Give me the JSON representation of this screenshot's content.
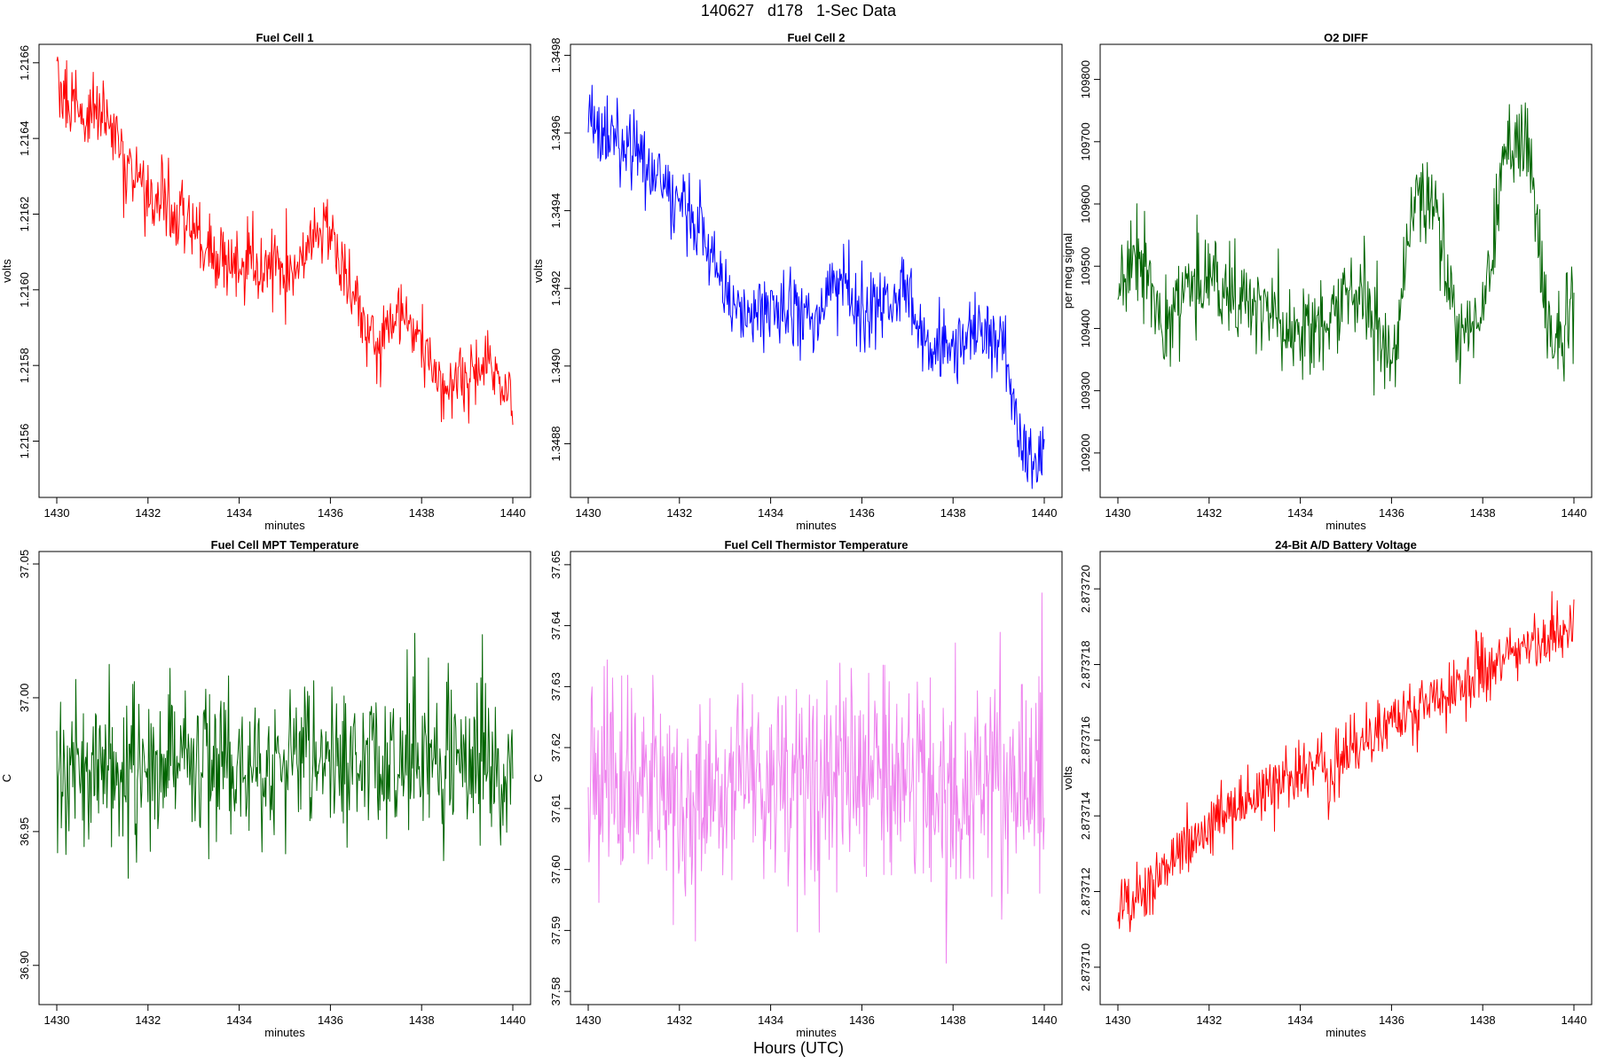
{
  "figure": {
    "title": "140627   d178   1-Sec Data",
    "footer": "Hours (UTC)"
  },
  "chart_data": [
    {
      "type": "line",
      "title": "Fuel Cell 1",
      "xlabel": "minutes",
      "ylabel": "volts",
      "color": "#ff0000",
      "xlim": [
        1430,
        1440
      ],
      "ylim": [
        1.21547,
        1.21663
      ],
      "xticks": [
        1430,
        1432,
        1434,
        1436,
        1438,
        1440
      ],
      "yticks": [
        1.2156,
        1.2158,
        1.216,
        1.2162,
        1.2164,
        1.2166
      ],
      "ytick_labels": [
        "1.2156",
        "1.2158",
        "1.2160",
        "1.2162",
        "1.2164",
        "1.2166"
      ],
      "x": [
        1430,
        1430.5,
        1431,
        1431.5,
        1432,
        1432.5,
        1433,
        1433.5,
        1434,
        1434.5,
        1435,
        1435.5,
        1436,
        1436.5,
        1437,
        1437.5,
        1438,
        1438.5,
        1439,
        1439.5,
        1440
      ],
      "values": [
        1.21656,
        1.21646,
        1.21648,
        1.21632,
        1.21626,
        1.21622,
        1.21617,
        1.21607,
        1.21607,
        1.21607,
        1.21602,
        1.21612,
        1.21615,
        1.21597,
        1.21585,
        1.21592,
        1.21587,
        1.21571,
        1.21578,
        1.21582,
        1.21566
      ],
      "spread": 9e-05
    },
    {
      "type": "line",
      "title": "Fuel Cell 2",
      "xlabel": "minutes",
      "ylabel": "volts",
      "color": "#0000ff",
      "xlim": [
        1430,
        1440
      ],
      "ylim": [
        1.34868,
        1.34981
      ],
      "xticks": [
        1430,
        1432,
        1434,
        1436,
        1438,
        1440
      ],
      "yticks": [
        1.3488,
        1.349,
        1.3492,
        1.3494,
        1.3496,
        1.3498
      ],
      "ytick_labels": [
        "1.3488",
        "1.3490",
        "1.3492",
        "1.3494",
        "1.3496",
        "1.3498"
      ],
      "x": [
        1430,
        1430.5,
        1431,
        1431.5,
        1432,
        1432.5,
        1433,
        1433.5,
        1434,
        1434.5,
        1435,
        1435.5,
        1436,
        1436.5,
        1437,
        1437.5,
        1438,
        1438.5,
        1439,
        1439.5,
        1440
      ],
      "values": [
        1.34965,
        1.34957,
        1.34955,
        1.3495,
        1.34942,
        1.34935,
        1.3492,
        1.34911,
        1.34916,
        1.34913,
        1.34912,
        1.3492,
        1.34913,
        1.34917,
        1.34918,
        1.34905,
        1.34906,
        1.34908,
        1.34908,
        1.3488,
        1.34876
      ],
      "spread": 9e-05
    },
    {
      "type": "line",
      "title": "O2 DIFF",
      "xlabel": "minutes",
      "ylabel": "per meg signal",
      "color": "#006400",
      "xlim": [
        1430,
        1440
      ],
      "ylim": [
        109140,
        109845
      ],
      "xticks": [
        1430,
        1432,
        1434,
        1436,
        1438,
        1440
      ],
      "yticks": [
        109200,
        109300,
        109400,
        109500,
        109600,
        109700,
        109800
      ],
      "ytick_labels": [
        "109200",
        "109300",
        "109400",
        "109500",
        "109600",
        "109700",
        "109800"
      ],
      "x": [
        1430,
        1430.5,
        1431,
        1431.5,
        1432,
        1432.5,
        1433,
        1433.5,
        1434,
        1434.5,
        1435,
        1435.5,
        1436,
        1436.5,
        1437,
        1437.5,
        1438,
        1438.5,
        1439,
        1439.5,
        1440
      ],
      "values": [
        109460,
        109520,
        109400,
        109470,
        109480,
        109450,
        109440,
        109410,
        109380,
        109400,
        109460,
        109430,
        109330,
        109600,
        109580,
        109380,
        109450,
        109680,
        109700,
        109380,
        109420
      ],
      "spread": 70
    },
    {
      "type": "line",
      "title": "Fuel Cell MPT Temperature",
      "xlabel": "minutes",
      "ylabel": "C",
      "color": "#006400",
      "xlim": [
        1430,
        1440
      ],
      "ylim": [
        36.888,
        37.052
      ],
      "xticks": [
        1430,
        1432,
        1434,
        1436,
        1438,
        1440
      ],
      "yticks": [
        36.9,
        36.95,
        37,
        37.05
      ],
      "ytick_labels": [
        "36.90",
        "36.95",
        "37.00",
        "37.05"
      ],
      "x": [
        1430,
        1430.5,
        1431,
        1431.5,
        1432,
        1432.5,
        1433,
        1433.5,
        1434,
        1434.5,
        1435,
        1435.5,
        1436,
        1436.5,
        1437,
        1437.5,
        1438,
        1438.5,
        1439,
        1439.5,
        1440
      ],
      "values": [
        36.975,
        36.975,
        36.974,
        36.975,
        36.975,
        36.975,
        36.975,
        36.975,
        36.975,
        36.975,
        36.975,
        36.975,
        36.975,
        36.975,
        36.975,
        36.975,
        36.975,
        36.975,
        36.975,
        36.975,
        36.975
      ],
      "spread": 0.025
    },
    {
      "type": "line",
      "title": "Fuel Cell Thermistor Temperature",
      "xlabel": "minutes",
      "ylabel": "C",
      "color": "#ee82ee",
      "xlim": [
        1430,
        1440
      ],
      "ylim": [
        37.579,
        37.651
      ],
      "xticks": [
        1430,
        1432,
        1434,
        1436,
        1438,
        1440
      ],
      "yticks": [
        37.58,
        37.59,
        37.6,
        37.61,
        37.62,
        37.63,
        37.64,
        37.65
      ],
      "ytick_labels": [
        "37.58",
        "37.59",
        "37.60",
        "37.61",
        "37.62",
        "37.63",
        "37.64",
        "37.65"
      ],
      "x": [
        1430,
        1430.5,
        1431,
        1431.5,
        1432,
        1432.5,
        1433,
        1433.5,
        1434,
        1434.5,
        1435,
        1435.5,
        1436,
        1436.5,
        1437,
        1437.5,
        1438,
        1438.5,
        1439,
        1439.5,
        1440
      ],
      "values": [
        37.614,
        37.614,
        37.614,
        37.614,
        37.614,
        37.614,
        37.614,
        37.614,
        37.614,
        37.614,
        37.614,
        37.614,
        37.614,
        37.614,
        37.614,
        37.614,
        37.614,
        37.614,
        37.614,
        37.614,
        37.614
      ],
      "spread": 0.017
    },
    {
      "type": "line",
      "title": "24-Bit A/D Battery Voltage",
      "xlabel": "minutes",
      "ylabel": "volts",
      "color": "#ff0000",
      "xlim": [
        1430,
        1440
      ],
      "ylim": [
        2.8737092,
        2.8737208
      ],
      "xticks": [
        1430,
        1432,
        1434,
        1436,
        1438,
        1440
      ],
      "yticks": [
        2.87371,
        2.873712,
        2.873714,
        2.873716,
        2.873718,
        2.87372
      ],
      "ytick_labels": [
        "2.873710",
        "2.873712",
        "2.873714",
        "2.873716",
        "2.873718",
        "2.873720"
      ],
      "x": [
        1430,
        1430.5,
        1431,
        1431.5,
        1432,
        1432.5,
        1433,
        1433.5,
        1434,
        1434.5,
        1435,
        1435.5,
        1436,
        1436.5,
        1437,
        1437.5,
        1438,
        1438.5,
        1439,
        1439.5,
        1440
      ],
      "values": [
        2.8737115,
        2.873712,
        2.8737125,
        2.8737133,
        2.8737138,
        2.8737142,
        2.8737145,
        2.8737148,
        2.873715,
        2.8737153,
        2.8737155,
        2.873716,
        2.8737165,
        2.8737168,
        2.873717,
        2.8737175,
        2.8737178,
        2.8737182,
        2.8737186,
        2.8737188,
        2.8737192
      ],
      "spread": 8e-07
    }
  ]
}
